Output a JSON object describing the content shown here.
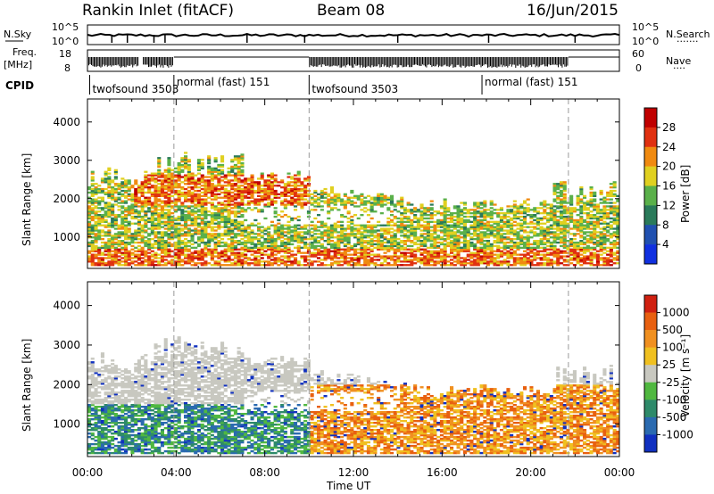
{
  "header": {
    "station": "Rankin Inlet (fitACF)",
    "beam": "Beam 08",
    "date": "16/Jun/2015"
  },
  "strips": {
    "nsky_label": "N.Sky",
    "nsky_ticks": [
      "10^5",
      "10^0"
    ],
    "nsearch_label": "N.Search",
    "nsearch_ticks": [
      "10^5",
      "10^0"
    ],
    "freq_label_1": "Freq.",
    "freq_label_2": "[MHz]",
    "freq_ticks": [
      "18",
      "8"
    ],
    "nave_label": "Nave",
    "nave_ticks": [
      "60",
      "0"
    ],
    "cpid_label": "CPID",
    "cpid_segments": [
      {
        "label": "twofsound 3503",
        "start_hour": 0.1
      },
      {
        "label": "normal (fast) 151",
        "start_hour": 3.9
      },
      {
        "label": "twofsound 3503",
        "start_hour": 10.0
      },
      {
        "label": "normal (fast) 151",
        "start_hour": 17.8
      }
    ]
  },
  "x_axis": {
    "title": "Time UT",
    "ticks": [
      "00:00",
      "04:00",
      "08:00",
      "12:00",
      "16:00",
      "20:00",
      "00:00"
    ]
  },
  "chart_data": [
    {
      "type": "heatmap",
      "name": "power",
      "ylabel": "Slant Range [km]",
      "yticks": [
        "1000",
        "2000",
        "3000",
        "4000"
      ],
      "ylim": [
        180,
        4600
      ],
      "xlim_hours": [
        0,
        24
      ],
      "colorbar_title": "Power [dB]",
      "colorbar_ticks": [
        "4",
        "8",
        "12",
        "16",
        "20",
        "24",
        "28"
      ],
      "colorbar_colors": [
        "#1030e0",
        "#2050b0",
        "#2a7a5a",
        "#5ab04a",
        "#e0d020",
        "#f08a10",
        "#e03010",
        "#c00000"
      ]
    },
    {
      "type": "heatmap",
      "name": "velocity",
      "ylabel": "Slant Range [km]",
      "yticks": [
        "1000",
        "2000",
        "3000",
        "4000"
      ],
      "ylim": [
        180,
        4600
      ],
      "xlim_hours": [
        0,
        24
      ],
      "colorbar_title": "Velocity [m s⁻¹]",
      "colorbar_ticks": [
        "1000",
        "500",
        "100",
        "25",
        "-25",
        "-100",
        "-500",
        "-1000"
      ],
      "colorbar_colors": [
        "#1030c0",
        "#2a6ab0",
        "#2e8a6a",
        "#50b840",
        "#c8c8c0",
        "#f0c020",
        "#f09020",
        "#e86010",
        "#d02010"
      ]
    }
  ]
}
